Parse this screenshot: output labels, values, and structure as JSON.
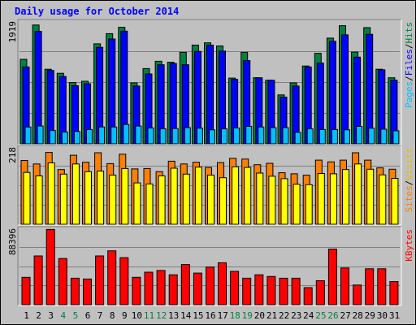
{
  "chart_data": [
    {
      "type": "bar",
      "title": "Daily usage for October 2014",
      "panel": "hits-files-pages",
      "ymax_label": "1919",
      "ylim": [
        0,
        1919
      ],
      "right_label_parts": [
        "Pages",
        "/",
        "Files",
        "/",
        "Hits"
      ],
      "categories": [
        "1",
        "2",
        "3",
        "4",
        "5",
        "6",
        "7",
        "8",
        "9",
        "10",
        "11",
        "12",
        "13",
        "14",
        "15",
        "16",
        "17",
        "18",
        "19",
        "20",
        "21",
        "22",
        "23",
        "24",
        "25",
        "26",
        "27",
        "28",
        "29",
        "30",
        "31"
      ],
      "weekend_days": [
        "4",
        "5",
        "11",
        "12",
        "18",
        "19",
        "25",
        "26"
      ],
      "series": [
        {
          "name": "Hits",
          "color": "#008040",
          "values": [
            1330,
            1870,
            1175,
            1110,
            965,
            985,
            1575,
            1735,
            1835,
            960,
            1185,
            1300,
            1285,
            1440,
            1555,
            1590,
            1540,
            1035,
            1440,
            1040,
            1000,
            770,
            960,
            1225,
            1425,
            1665,
            1860,
            1445,
            1830,
            1175,
            1040
          ]
        },
        {
          "name": "Files",
          "color": "#0000ff",
          "values": [
            1210,
            1770,
            1155,
            1060,
            915,
            945,
            1520,
            1650,
            1775,
            910,
            1100,
            1245,
            1265,
            1245,
            1455,
            1555,
            1460,
            1015,
            1310,
            1040,
            1000,
            735,
            910,
            1210,
            1270,
            1615,
            1715,
            1365,
            1725,
            1165,
            1000
          ]
        },
        {
          "name": "Pages",
          "color": "#00c0ff",
          "values": [
            265,
            280,
            210,
            185,
            195,
            225,
            265,
            265,
            305,
            280,
            250,
            235,
            240,
            255,
            245,
            220,
            235,
            250,
            275,
            265,
            255,
            255,
            180,
            235,
            225,
            225,
            220,
            275,
            245,
            230,
            205
          ]
        }
      ]
    },
    {
      "type": "bar",
      "panel": "visits-sites",
      "ymax_label": "218",
      "ylim": [
        0,
        218
      ],
      "right_label_parts": [
        "Sites",
        "/",
        "Visits"
      ],
      "categories": [
        "1",
        "2",
        "3",
        "4",
        "5",
        "6",
        "7",
        "8",
        "9",
        "10",
        "11",
        "12",
        "13",
        "14",
        "15",
        "16",
        "17",
        "18",
        "19",
        "20",
        "21",
        "22",
        "23",
        "24",
        "25",
        "26",
        "27",
        "28",
        "29",
        "30",
        "31"
      ],
      "series": [
        {
          "name": "Visits",
          "color": "#ff8000",
          "values": [
            182,
            172,
            205,
            156,
            197,
            177,
            204,
            173,
            200,
            158,
            159,
            150,
            180,
            172,
            177,
            162,
            176,
            188,
            186,
            170,
            174,
            147,
            144,
            140,
            183,
            178,
            183,
            204,
            183,
            161,
            157
          ]
        },
        {
          "name": "Sites",
          "color": "#ffff00",
          "values": [
            148,
            138,
            175,
            143,
            172,
            150,
            152,
            140,
            159,
            118,
            115,
            138,
            160,
            143,
            163,
            140,
            133,
            164,
            162,
            146,
            137,
            130,
            114,
            113,
            145,
            144,
            156,
            172,
            157,
            141,
            131
          ]
        }
      ]
    },
    {
      "type": "bar",
      "panel": "kbytes",
      "ymax_label": "88396",
      "ylim": [
        0,
        88396
      ],
      "right_label_parts": [
        "KBytes"
      ],
      "categories": [
        "1",
        "2",
        "3",
        "4",
        "5",
        "6",
        "7",
        "8",
        "9",
        "10",
        "11",
        "12",
        "13",
        "14",
        "15",
        "16",
        "17",
        "18",
        "19",
        "20",
        "21",
        "22",
        "23",
        "24",
        "25",
        "26",
        "27",
        "28",
        "29",
        "30",
        "31"
      ],
      "series": [
        {
          "name": "KBytes",
          "color": "#ff0000",
          "values": [
            32000,
            57000,
            88000,
            54000,
            31000,
            30000,
            57000,
            63000,
            55000,
            32000,
            38000,
            40000,
            35000,
            47000,
            37000,
            44000,
            49000,
            39000,
            31000,
            35000,
            33000,
            31000,
            31000,
            20000,
            28000,
            65000,
            43000,
            23000,
            42000,
            42000,
            27000
          ]
        }
      ]
    }
  ]
}
